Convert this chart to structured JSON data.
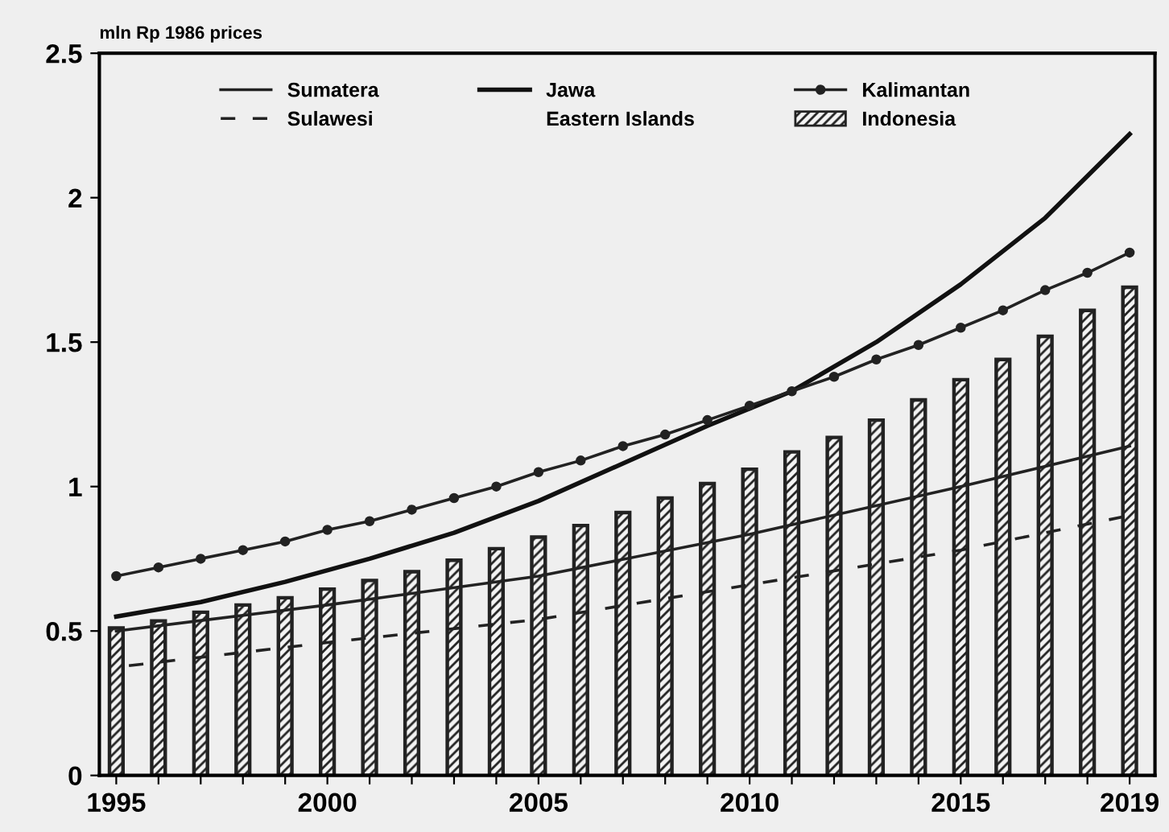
{
  "chart_data": {
    "type": "line",
    "ylabel": "mln Rp 1986 prices",
    "xlim": [
      1994.6,
      2019.6
    ],
    "xticks": [
      1995,
      {
        "value": 1996,
        "label": null
      },
      {
        "value": 1997,
        "label": null
      },
      {
        "value": 1998,
        "label": null
      },
      {
        "value": 1999,
        "label": null
      },
      2000,
      {
        "value": 2001,
        "label": null
      },
      {
        "value": 2002,
        "label": null
      },
      {
        "value": 2003,
        "label": null
      },
      {
        "value": 2004,
        "label": null
      },
      2005,
      {
        "value": 2006,
        "label": null
      },
      {
        "value": 2007,
        "label": null
      },
      {
        "value": 2008,
        "label": null
      },
      {
        "value": 2009,
        "label": null
      },
      2010,
      {
        "value": 2011,
        "label": null
      },
      {
        "value": 2012,
        "label": null
      },
      {
        "value": 2013,
        "label": null
      },
      {
        "value": 2014,
        "label": null
      },
      2015,
      {
        "value": 2016,
        "label": null
      },
      {
        "value": 2017,
        "label": null
      },
      {
        "value": 2018,
        "label": null
      },
      2019
    ],
    "ylim": [
      0,
      2.5
    ],
    "yticks": [
      0,
      0.5,
      1,
      1.5,
      2,
      2.5
    ],
    "grid": false,
    "legend": "top",
    "series": [
      {
        "name": "Sumatera",
        "color": "#222222",
        "line_style": "solid",
        "x": [
          1995,
          2000,
          2005,
          2010,
          2015,
          2019
        ],
        "values": [
          0.5,
          0.59,
          0.69,
          0.835,
          1.0,
          1.14
        ]
      },
      {
        "name": "Jawa",
        "color": "#111111",
        "line_style": "solid",
        "x": [
          1995,
          1997,
          1999,
          2001,
          2003,
          2005,
          2007,
          2009,
          2011,
          2013,
          2015,
          2017,
          2019
        ],
        "values": [
          0.55,
          0.6,
          0.67,
          0.75,
          0.84,
          0.95,
          1.08,
          1.21,
          1.33,
          1.5,
          1.7,
          1.93,
          2.22
        ]
      },
      {
        "name": "Kalimantan",
        "color": "#222222",
        "line_style": "solid",
        "marker": "circle",
        "x": [
          1995,
          1996,
          1997,
          1998,
          1999,
          2000,
          2001,
          2002,
          2003,
          2004,
          2005,
          2006,
          2007,
          2008,
          2009,
          2010,
          2011,
          2012,
          2013,
          2014,
          2015,
          2016,
          2017,
          2018,
          2019
        ],
        "values": [
          0.69,
          0.72,
          0.75,
          0.78,
          0.81,
          0.85,
          0.88,
          0.92,
          0.96,
          1.0,
          1.05,
          1.09,
          1.14,
          1.18,
          1.23,
          1.28,
          1.33,
          1.38,
          1.44,
          1.49,
          1.55,
          1.61,
          1.68,
          1.74,
          1.81
        ]
      },
      {
        "name": "Sulawesi",
        "color": "#222222",
        "line_style": "dashed",
        "x": [
          1995.3,
          2000,
          2005,
          2010,
          2015,
          2019
        ],
        "values": [
          0.38,
          0.46,
          0.54,
          0.66,
          0.78,
          0.9
        ]
      },
      {
        "name": "Eastern Islands"
      },
      {
        "name": "Indonesia",
        "type": "bar",
        "color": "#222222",
        "x": [
          1995,
          1996,
          1997,
          1998,
          1999,
          2000,
          2001,
          2002,
          2003,
          2004,
          2005,
          2006,
          2007,
          2008,
          2009,
          2010,
          2011,
          2012,
          2013,
          2014,
          2015,
          2016,
          2017,
          2018,
          2019
        ],
        "values": [
          0.51,
          0.535,
          0.565,
          0.59,
          0.615,
          0.645,
          0.675,
          0.705,
          0.745,
          0.785,
          0.825,
          0.865,
          0.91,
          0.96,
          1.01,
          1.06,
          1.12,
          1.17,
          1.23,
          1.3,
          1.37,
          1.44,
          1.52,
          1.61,
          1.69
        ]
      }
    ]
  }
}
